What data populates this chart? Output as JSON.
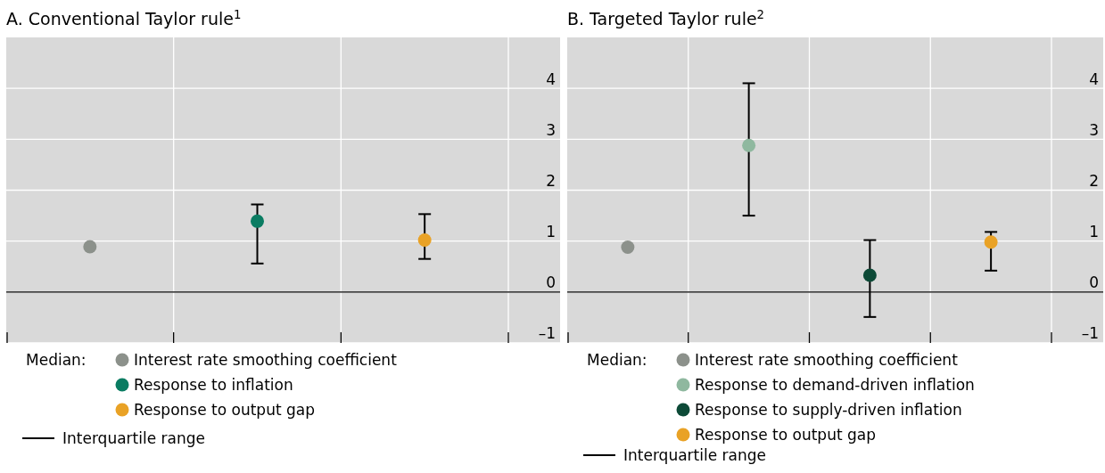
{
  "chart_data": [
    {
      "type": "scatter",
      "title": "A. Conventional Taylor rule$^{1}$",
      "categories": [
        null,
        null,
        null
      ],
      "ylim": [
        -1,
        5
      ],
      "yticks": [
        {
          "value": -1,
          "label": "–1"
        },
        0,
        1,
        2,
        3,
        4
      ],
      "grid": true,
      "marker": "circle",
      "legend": "bottom",
      "legend_title": "Median:",
      "tick_labels": "y",
      "ref_lines": [
        {
          "axis": "y",
          "value": 0,
          "color": "#000000"
        }
      ],
      "annotations": [
        "Interquartile range"
      ],
      "series": [
        {
          "name": "Interest rate smoothing coefficient",
          "color": "#8c918b",
          "values": [
            0.89,
            null,
            null
          ],
          "errors": [
            null,
            null,
            null
          ]
        },
        {
          "name": "Response to inflation",
          "color": "#0a7c62",
          "values": [
            null,
            1.39,
            null
          ],
          "errors": [
            null,
            [
              0.56,
              1.72
            ],
            null
          ]
        },
        {
          "name": "Response to output gap",
          "color": "#e9a226",
          "values": [
            null,
            null,
            1.02
          ],
          "errors": [
            null,
            null,
            [
              0.65,
              1.53
            ]
          ]
        }
      ]
    },
    {
      "type": "scatter",
      "title": "B. Targeted Taylor rule$^{2}$",
      "categories": [
        null,
        null,
        null,
        null
      ],
      "ylim": [
        -1,
        5
      ],
      "yticks": [
        {
          "value": -1,
          "label": "–1"
        },
        0,
        1,
        2,
        3,
        4
      ],
      "grid": true,
      "marker": "circle",
      "legend": "bottom",
      "legend_title": "Median:",
      "tick_labels": "y",
      "ref_lines": [
        {
          "axis": "y",
          "value": 0,
          "color": "#000000"
        }
      ],
      "annotations": [
        "Interquartile range"
      ],
      "series": [
        {
          "name": "Interest rate smoothing coefficient",
          "color": "#8c918b",
          "values": [
            0.88,
            null,
            null,
            null
          ],
          "errors": [
            null,
            null,
            null,
            null
          ]
        },
        {
          "name": "Response to demand-driven inflation",
          "color": "#8fb89f",
          "values": [
            null,
            2.88,
            null,
            null
          ],
          "errors": [
            null,
            [
              1.5,
              4.1
            ],
            null,
            null
          ]
        },
        {
          "name": "Response to supply-driven inflation",
          "color": "#0d4a37",
          "values": [
            null,
            null,
            0.33,
            null
          ],
          "errors": [
            null,
            null,
            [
              -0.49,
              1.02
            ],
            null
          ]
        },
        {
          "name": "Response to output gap",
          "color": "#e9a226",
          "values": [
            null,
            null,
            null,
            0.98
          ],
          "errors": [
            null,
            null,
            null,
            [
              0.42,
              1.18
            ]
          ]
        }
      ]
    }
  ]
}
